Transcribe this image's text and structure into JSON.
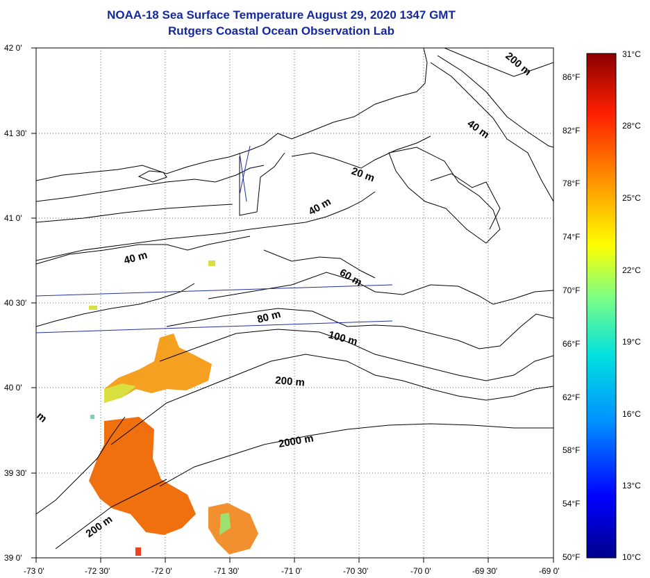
{
  "title": {
    "line1": "NOAA-18 Sea Surface Temperature August 29, 2020 1347 GMT",
    "line2": "Rutgers Coastal Ocean Observation Lab"
  },
  "latitude_labels": [
    "42 0'",
    "41 30'",
    "41 0'",
    "40 30'",
    "40 0'",
    "39 30'",
    "39 0'"
  ],
  "longitude_labels": [
    "-73 0'",
    "-72 30'",
    "-72 0'",
    "-71 30'",
    "-71 0'",
    "-70 30'",
    "-70 0'",
    "-69 30'",
    "-69 0'"
  ],
  "contour_labels": [
    "200 m",
    "40 m",
    "20 m",
    "40 m",
    "40 m",
    "60 m",
    "80 m",
    "100 m",
    "200 m",
    "2000 m",
    "200 m",
    "m"
  ],
  "colorbar": {
    "celsius": [
      "31°C",
      "28°C",
      "25°C",
      "22°C",
      "19°C",
      "16°C",
      "13°C",
      "10°C"
    ],
    "fahrenheit": [
      "86°F",
      "82°F",
      "78°F",
      "74°F",
      "70°F",
      "66°F",
      "62°F",
      "58°F",
      "54°F",
      "50°F"
    ],
    "range_c": [
      10,
      31
    ],
    "colors": [
      "#00008b",
      "#0000ff",
      "#0090ff",
      "#00e0e0",
      "#80ff80",
      "#ffff00",
      "#ff9000",
      "#ff2000",
      "#8b0000"
    ]
  },
  "colors": {
    "title": "#1428a0",
    "land_outline": "#000000",
    "track_line": "#1e2ea0",
    "sst_warm": "#f08a10"
  }
}
